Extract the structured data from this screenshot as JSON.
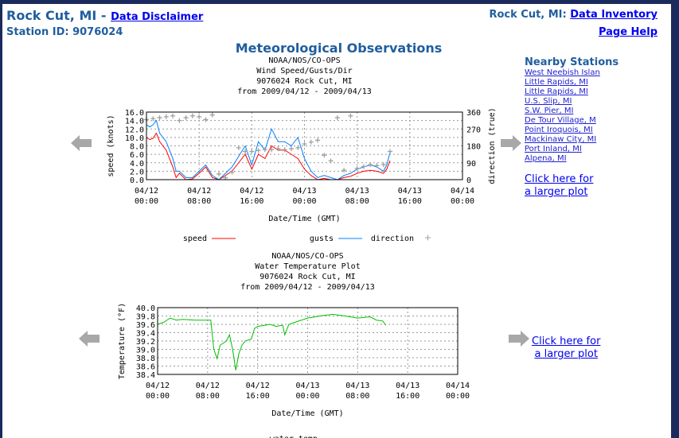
{
  "header": {
    "station": "Rock Cut, MI -",
    "disclaimer": "Data Disclaimer",
    "station_id": "Station ID: 9076024",
    "inventory_prefix": "Rock Cut, MI:",
    "inventory": "Data Inventory",
    "help": "Page Help"
  },
  "page_title": "Meteorological Observations",
  "nearby": {
    "title": "Nearby Stations",
    "items": [
      "West Neebish Islan",
      "Little Rapids, MI",
      "Little Rapids, MI",
      "U.S. Slip, MI",
      "S.W. Pier, MI",
      "De Tour Village, M",
      "Point Iroquois, MI",
      "Mackinaw City, MI",
      "Port Inland, MI",
      "Alpena, MI"
    ]
  },
  "larger_plot": {
    "line1": "Click here for",
    "line2": "a larger plot"
  },
  "icons": {
    "prev": "left-arrow-icon",
    "next": "right-arrow-icon"
  },
  "chart_data": [
    {
      "type": "line",
      "title": [
        "NOAA/NOS/CO-OPS",
        "Wind Speed/Gusts/Dir",
        "9076024 Rock Cut, MI",
        "from 2009/04/12 - 2009/04/13"
      ],
      "xlabel": "Date/Time (GMT)",
      "ylabel": "speed (knots)",
      "y2label": "direction (true)",
      "xlim": [
        "2009-04-12T00:00",
        "2009-04-14T00:00"
      ],
      "ylim": [
        0,
        16
      ],
      "y2lim": [
        0,
        360
      ],
      "grid": true,
      "legend": "bottom",
      "xticks": [
        [
          "04/12",
          "00:00"
        ],
        [
          "04/12",
          "08:00"
        ],
        [
          "04/12",
          "16:00"
        ],
        [
          "04/13",
          "00:00"
        ],
        [
          "04/13",
          "08:00"
        ],
        [
          "04/13",
          "16:00"
        ],
        [
          "04/14",
          "00:00"
        ]
      ],
      "yticks": [
        "0.0",
        "2.0",
        "4.0",
        "6.0",
        "8.0",
        "10.0",
        "12.0",
        "14.0",
        "16.0"
      ],
      "y2ticks": [
        "0",
        "90",
        "180",
        "270",
        "360"
      ],
      "series": [
        {
          "name": "speed",
          "color": "#ff0000",
          "axis": "y",
          "x": [
            "2009-04-12T00:00",
            "2009-04-12T00:30",
            "2009-04-12T01:00",
            "2009-04-12T01:30",
            "2009-04-12T02:00",
            "2009-04-12T03:00",
            "2009-04-12T04:00",
            "2009-04-12T04:30",
            "2009-04-12T05:00",
            "2009-04-12T06:00",
            "2009-04-12T07:00",
            "2009-04-12T08:00",
            "2009-04-12T09:00",
            "2009-04-12T10:00",
            "2009-04-12T11:00",
            "2009-04-12T12:00",
            "2009-04-12T13:00",
            "2009-04-12T14:00",
            "2009-04-12T15:00",
            "2009-04-12T16:00",
            "2009-04-12T17:00",
            "2009-04-12T18:00",
            "2009-04-12T19:00",
            "2009-04-12T20:00",
            "2009-04-12T21:00",
            "2009-04-12T22:00",
            "2009-04-12T23:00",
            "2009-04-13T00:00",
            "2009-04-13T01:00",
            "2009-04-13T02:00",
            "2009-04-13T03:00",
            "2009-04-13T04:00",
            "2009-04-13T05:00",
            "2009-04-13T06:00",
            "2009-04-13T07:00",
            "2009-04-13T08:00",
            "2009-04-13T09:00",
            "2009-04-13T10:00",
            "2009-04-13T11:00",
            "2009-04-13T12:00",
            "2009-04-13T12:30",
            "2009-04-13T13:00"
          ],
          "y": [
            10,
            9.5,
            9.8,
            11,
            9,
            7,
            3,
            0.5,
            1.5,
            0,
            0.2,
            1.5,
            3,
            0.5,
            0,
            1,
            2,
            4,
            6,
            2.5,
            6,
            5,
            8,
            7,
            7,
            6,
            5,
            2.5,
            1,
            0,
            0.3,
            0,
            0,
            0.5,
            0.8,
            1.5,
            2,
            2.2,
            2,
            1.5,
            2.5,
            4.5
          ]
        },
        {
          "name": "gusts",
          "color": "#0080ff",
          "axis": "y",
          "x": [
            "2009-04-12T00:00",
            "2009-04-12T00:30",
            "2009-04-12T01:00",
            "2009-04-12T01:30",
            "2009-04-12T02:00",
            "2009-04-12T03:00",
            "2009-04-12T04:00",
            "2009-04-12T04:30",
            "2009-04-12T05:00",
            "2009-04-12T06:00",
            "2009-04-12T07:00",
            "2009-04-12T08:00",
            "2009-04-12T09:00",
            "2009-04-12T10:00",
            "2009-04-12T11:00",
            "2009-04-12T12:00",
            "2009-04-12T13:00",
            "2009-04-12T14:00",
            "2009-04-12T15:00",
            "2009-04-12T16:00",
            "2009-04-12T17:00",
            "2009-04-12T18:00",
            "2009-04-12T19:00",
            "2009-04-12T20:00",
            "2009-04-12T21:00",
            "2009-04-12T22:00",
            "2009-04-12T23:00",
            "2009-04-13T00:00",
            "2009-04-13T01:00",
            "2009-04-13T02:00",
            "2009-04-13T03:00",
            "2009-04-13T04:00",
            "2009-04-13T05:00",
            "2009-04-13T06:00",
            "2009-04-13T07:00",
            "2009-04-13T08:00",
            "2009-04-13T09:00",
            "2009-04-13T10:00",
            "2009-04-13T11:00",
            "2009-04-13T12:00",
            "2009-04-13T12:30",
            "2009-04-13T13:00"
          ],
          "y": [
            13,
            12.5,
            13,
            14,
            11,
            9,
            5,
            2,
            2,
            0.5,
            0.5,
            2,
            3.5,
            1,
            0,
            1.5,
            3,
            5.5,
            8,
            3.5,
            9,
            7,
            12,
            9,
            9,
            8,
            10,
            5,
            2,
            0.5,
            1,
            0.5,
            0,
            1,
            1.5,
            2.5,
            3,
            3.5,
            3,
            2,
            3.5,
            6.5
          ]
        },
        {
          "name": "direction",
          "color": "#a0a0a0",
          "axis": "y2",
          "marker": "+",
          "x": [
            "2009-04-12T00:00",
            "2009-04-12T01:00",
            "2009-04-12T02:00",
            "2009-04-12T03:00",
            "2009-04-12T04:00",
            "2009-04-12T05:00",
            "2009-04-12T06:00",
            "2009-04-12T07:00",
            "2009-04-12T08:00",
            "2009-04-12T09:00",
            "2009-04-12T10:00",
            "2009-04-12T11:00",
            "2009-04-12T12:00",
            "2009-04-12T13:00",
            "2009-04-12T14:00",
            "2009-04-12T15:00",
            "2009-04-12T16:00",
            "2009-04-12T17:00",
            "2009-04-12T18:00",
            "2009-04-12T19:00",
            "2009-04-12T20:00",
            "2009-04-12T21:00",
            "2009-04-12T22:00",
            "2009-04-12T23:00",
            "2009-04-13T00:00",
            "2009-04-13T01:00",
            "2009-04-13T02:00",
            "2009-04-13T03:00",
            "2009-04-13T04:00",
            "2009-04-13T05:00",
            "2009-04-13T06:00",
            "2009-04-13T07:00",
            "2009-04-13T08:00",
            "2009-04-13T09:00",
            "2009-04-13T10:00",
            "2009-04-13T11:00",
            "2009-04-13T12:00",
            "2009-04-13T13:00"
          ],
          "y": [
            320,
            325,
            330,
            335,
            340,
            315,
            330,
            340,
            335,
            320,
            345,
            30,
            10,
            40,
            170,
            150,
            150,
            155,
            160,
            160,
            165,
            160,
            165,
            170,
            190,
            200,
            210,
            130,
            100,
            330,
            50,
            340,
            60,
            70,
            80,
            75,
            80,
            150
          ]
        }
      ]
    },
    {
      "type": "line",
      "title": [
        "NOAA/NOS/CO-OPS",
        "Water Temperature Plot",
        "9076024 Rock Cut, MI",
        "from 2009/04/12 - 2009/04/13"
      ],
      "xlabel": "Date/Time (GMT)",
      "ylabel": "Temperature (°F)",
      "xlim": [
        "2009-04-12T00:00",
        "2009-04-14T00:00"
      ],
      "ylim": [
        38.4,
        40.0
      ],
      "grid": true,
      "legend": "bottom",
      "xticks": [
        [
          "04/12",
          "00:00"
        ],
        [
          "04/12",
          "08:00"
        ],
        [
          "04/12",
          "16:00"
        ],
        [
          "04/13",
          "00:00"
        ],
        [
          "04/13",
          "08:00"
        ],
        [
          "04/13",
          "16:00"
        ],
        [
          "04/14",
          "00:00"
        ]
      ],
      "yticks": [
        "38.4",
        "38.6",
        "38.8",
        "39.0",
        "39.2",
        "39.4",
        "39.6",
        "39.8",
        "40.0"
      ],
      "series": [
        {
          "name": "water temp.",
          "color": "#00c000",
          "x": [
            "2009-04-12T00:00",
            "2009-04-12T01:00",
            "2009-04-12T02:00",
            "2009-04-12T03:00",
            "2009-04-12T04:00",
            "2009-04-12T06:00",
            "2009-04-12T08:30",
            "2009-04-12T09:00",
            "2009-04-12T09:30",
            "2009-04-12T10:00",
            "2009-04-12T11:00",
            "2009-04-12T11:30",
            "2009-04-12T12:00",
            "2009-04-12T12:30",
            "2009-04-12T13:00",
            "2009-04-12T13:30",
            "2009-04-12T14:00",
            "2009-04-12T15:00",
            "2009-04-12T15:30",
            "2009-04-12T16:00",
            "2009-04-12T18:00",
            "2009-04-12T19:00",
            "2009-04-12T20:00",
            "2009-04-12T20:20",
            "2009-04-12T21:00",
            "2009-04-12T22:00",
            "2009-04-12T23:00",
            "2009-04-13T00:00",
            "2009-04-13T02:00",
            "2009-04-13T04:00",
            "2009-04-13T06:00",
            "2009-04-13T08:00",
            "2009-04-13T10:00",
            "2009-04-13T11:00",
            "2009-04-13T12:00",
            "2009-04-13T12:30"
          ],
          "y": [
            39.6,
            39.65,
            39.75,
            39.7,
            39.72,
            39.7,
            39.7,
            39.0,
            38.78,
            39.1,
            39.2,
            39.35,
            39.0,
            38.5,
            38.9,
            39.1,
            39.2,
            39.25,
            39.5,
            39.55,
            39.6,
            39.55,
            39.58,
            39.35,
            39.6,
            39.65,
            39.7,
            39.75,
            39.8,
            39.84,
            39.8,
            39.75,
            39.78,
            39.7,
            39.68,
            39.58
          ]
        }
      ]
    }
  ]
}
